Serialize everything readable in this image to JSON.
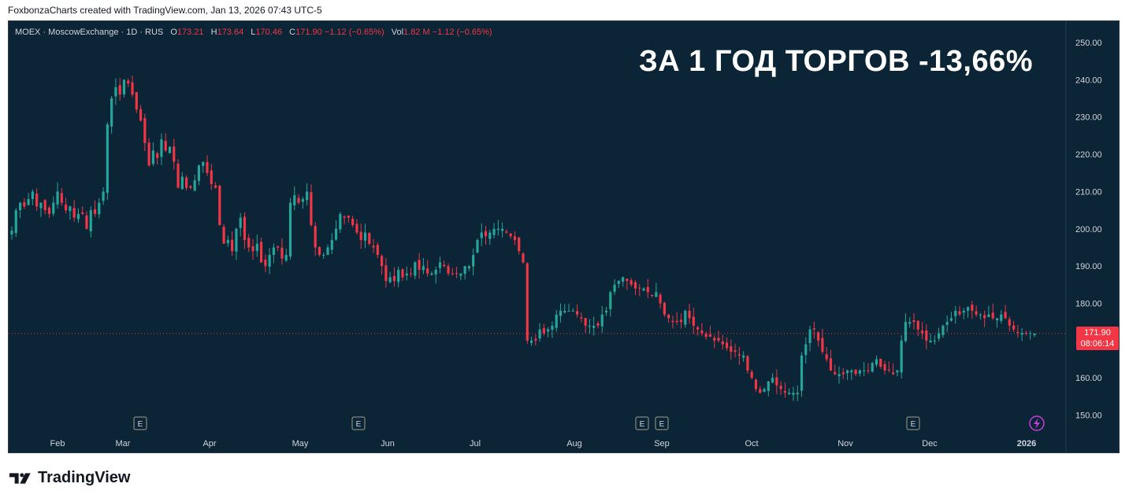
{
  "attribution": "FoxbonzaCharts created with TradingView.com, Jan 13, 2026 07:43 UTC-5",
  "legend": {
    "symbol": "MOEX · MoscowExchange · 1D · RUS",
    "open_label": "O",
    "open": "173.21",
    "high_label": "H",
    "high": "173.64",
    "low_label": "L",
    "low": "170.46",
    "close_label": "C",
    "close": "171.90",
    "change": "−1.12 (−0.65%)",
    "vol_label": "Vol",
    "vol": "1.82 M",
    "vol_change": "−1.12 (−0.65%)"
  },
  "headline": "ЗА 1 ГОД ТОРГОВ -13,66%",
  "price_tag": {
    "price": "171.90",
    "countdown": "08:06:14"
  },
  "colors": {
    "background": "#0b2436",
    "up": "#26a69a",
    "down": "#f23645",
    "text": "#d1d4dc"
  },
  "brand": {
    "name": "TradingView"
  },
  "chart_data": {
    "type": "candlestick",
    "ylim": [
      146,
      254
    ],
    "yticks": [
      "150.00",
      "160.00",
      "170.00",
      "180.00",
      "190.00",
      "200.00",
      "210.00",
      "220.00",
      "230.00",
      "240.00",
      "250.00"
    ],
    "x_labels": [
      "Feb",
      "Mar",
      "Apr",
      "May",
      "Jun",
      "Jul",
      "Aug",
      "Sep",
      "Oct",
      "Nov",
      "Dec",
      "2026"
    ],
    "earnings_markers": [
      "E",
      "E",
      "E",
      "E",
      "E"
    ],
    "last_price": 171.9,
    "close_series": [
      199.5,
      205,
      207,
      206,
      208,
      210,
      206,
      207,
      205,
      204,
      207,
      210,
      207,
      205,
      206,
      203,
      204,
      204,
      200,
      205,
      204,
      207,
      210,
      228,
      235,
      238,
      236,
      240,
      239,
      236,
      232,
      229,
      223,
      217,
      221,
      219,
      224,
      221,
      222,
      218,
      211,
      214,
      211,
      211,
      213,
      217,
      218,
      215,
      212,
      211,
      201,
      196,
      197,
      194,
      200,
      203,
      197,
      195,
      194,
      196,
      191,
      190,
      193,
      195,
      195,
      192,
      193,
      207,
      209,
      207,
      208,
      210,
      201,
      195,
      193,
      193,
      195,
      197,
      200,
      204,
      203,
      203,
      201,
      199,
      197,
      199,
      196,
      195,
      193,
      190,
      186,
      187,
      186,
      189,
      187,
      188,
      188,
      191,
      189,
      190,
      188,
      188,
      189,
      191,
      190,
      188,
      188,
      188,
      188,
      190,
      190,
      193,
      197,
      199,
      198,
      199,
      200,
      200,
      200,
      199,
      198,
      197,
      194,
      191,
      170,
      170,
      170,
      173,
      172,
      173,
      174,
      177,
      178,
      178,
      178,
      178,
      177,
      176,
      174,
      174,
      174,
      174,
      177,
      178,
      183,
      185,
      186,
      187,
      186,
      185,
      184,
      184,
      184,
      183,
      182,
      183,
      180,
      177,
      176,
      175,
      175,
      175,
      178,
      176,
      174,
      173,
      172,
      171,
      171,
      170,
      170,
      169,
      168,
      167,
      167,
      166,
      166,
      162,
      160,
      157,
      156,
      157,
      159,
      160,
      158,
      157,
      156,
      156,
      156,
      156,
      166,
      169,
      173,
      173,
      170,
      167,
      165,
      162,
      161,
      161,
      161,
      162,
      162,
      161,
      162,
      162,
      162,
      164,
      165,
      163,
      162,
      162,
      161,
      162,
      170,
      175,
      175,
      175,
      173,
      172,
      170,
      170,
      170,
      172,
      174,
      175,
      176,
      178,
      177,
      178,
      179,
      178,
      177,
      177,
      176,
      177,
      176,
      176,
      177,
      176,
      174,
      173,
      172,
      172,
      172,
      172,
      171.9
    ]
  }
}
